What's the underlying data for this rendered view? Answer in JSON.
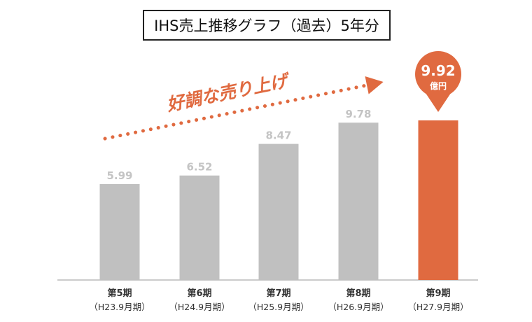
{
  "chart_data": {
    "type": "bar",
    "title": "IHS売上推移グラフ（過去）5年分",
    "categories": [
      "第5期",
      "第6期",
      "第7期",
      "第8期",
      "第9期"
    ],
    "subcategories": [
      "（H23.9月期）",
      "（H24.9月期）",
      "（H25.9月期）",
      "（H26.9月期）",
      "（H27.9月期）"
    ],
    "values": [
      5.99,
      6.52,
      8.47,
      9.78,
      9.92
    ],
    "value_labels": [
      "5.99",
      "6.52",
      "8.47",
      "9.78",
      "9.92"
    ],
    "highlight_index": 4,
    "highlight_unit": "億円",
    "annotation": "好調な売り上げ",
    "ylim": [
      0,
      10
    ],
    "xlabel": "",
    "ylabel": "",
    "grid": false
  },
  "colors": {
    "bar": "#c0c0c0",
    "highlight": "#e06a40",
    "value_label": "#c4c4c4",
    "axis": "#999999",
    "text": "#333333"
  }
}
